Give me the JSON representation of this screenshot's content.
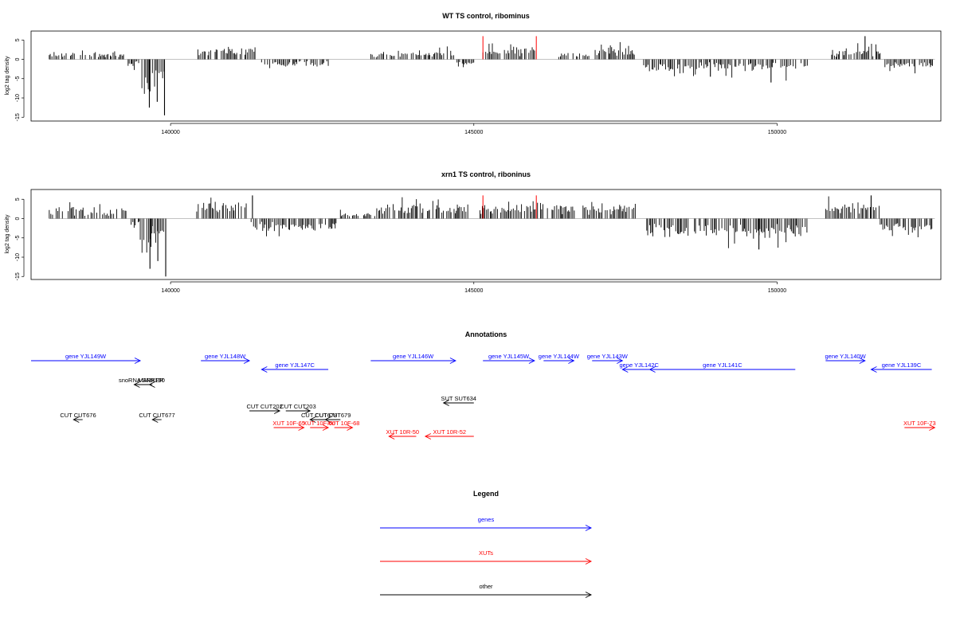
{
  "chart_data": [
    {
      "type": "bar",
      "title": "WT TS control, ribominus",
      "xlabel": "",
      "ylabel": "log2 tag density",
      "xlim": [
        137700,
        152700
      ],
      "ylim": [
        -16,
        7
      ],
      "x_ticks": [
        140000,
        145000,
        150000
      ],
      "y_ticks": [
        5,
        0,
        -5,
        -10,
        -15
      ],
      "grid": false,
      "bar_color": "#000000",
      "highlight_color": "#ff0000",
      "highlight_x": [
        145150,
        146030
      ],
      "highlight_height": 6,
      "segments": [
        {
          "x0": 138000,
          "x1": 138300,
          "sign": 1,
          "base": 1.2,
          "amp": 0.8,
          "seed": 1
        },
        {
          "x0": 138350,
          "x1": 139250,
          "sign": 1,
          "base": 1.0,
          "amp": 1.2,
          "seed": 2
        },
        {
          "x0": 139300,
          "x1": 139500,
          "sign": -1,
          "base": 1.0,
          "amp": 1.5,
          "seed": 3
        },
        {
          "x0": 139500,
          "x1": 139700,
          "sign": -1,
          "base": 7.0,
          "amp": 5.0,
          "seed": 4
        },
        {
          "x0": 139700,
          "x1": 139900,
          "sign": -1,
          "base": 3.0,
          "amp": 4.0,
          "seed": 5
        },
        {
          "x0": 140450,
          "x1": 141400,
          "sign": 1,
          "base": 2.0,
          "amp": 1.6,
          "seed": 6
        },
        {
          "x0": 141500,
          "x1": 142600,
          "sign": -1,
          "base": 1.0,
          "amp": 1.5,
          "seed": 7
        },
        {
          "x0": 143300,
          "x1": 143900,
          "sign": 1,
          "base": 1.0,
          "amp": 1.0,
          "seed": 8
        },
        {
          "x0": 143900,
          "x1": 144700,
          "sign": 1,
          "base": 1.2,
          "amp": 1.5,
          "seed": 9
        },
        {
          "x0": 144700,
          "x1": 145000,
          "sign": -1,
          "base": 0.8,
          "amp": 1.0,
          "seed": 10
        },
        {
          "x0": 145150,
          "x1": 146050,
          "sign": 1,
          "base": 2.0,
          "amp": 1.5,
          "seed": 11
        },
        {
          "x0": 146400,
          "x1": 146900,
          "sign": 1,
          "base": 1.2,
          "amp": 1.0,
          "seed": 12
        },
        {
          "x0": 147000,
          "x1": 147650,
          "sign": 1,
          "base": 2.0,
          "amp": 2.0,
          "seed": 13
        },
        {
          "x0": 147800,
          "x1": 150500,
          "sign": -1,
          "base": 1.5,
          "amp": 2.5,
          "seed": 14
        },
        {
          "x0": 150900,
          "x1": 151700,
          "sign": 1,
          "base": 1.5,
          "amp": 2.0,
          "seed": 15
        },
        {
          "x0": 151700,
          "x1": 152600,
          "sign": -1,
          "base": 1.5,
          "amp": 1.5,
          "seed": 16
        }
      ],
      "peaks": [
        {
          "x": 139900,
          "y": -14.5
        },
        {
          "x": 139650,
          "y": -12.5
        },
        {
          "x": 139780,
          "y": -11.0
        },
        {
          "x": 151450,
          "y": 6.0
        },
        {
          "x": 149900,
          "y": -6.0
        },
        {
          "x": 148900,
          "y": -4.5
        }
      ]
    },
    {
      "type": "bar",
      "title": "xrn1 TS control, riboninus",
      "xlabel": "",
      "ylabel": "log2 tag density",
      "xlim": [
        137700,
        152700
      ],
      "ylim": [
        -16,
        7
      ],
      "x_ticks": [
        140000,
        145000,
        150000
      ],
      "y_ticks": [
        5,
        0,
        -5,
        -10,
        -15
      ],
      "grid": false,
      "bar_color": "#000000",
      "highlight_color": "#ff0000",
      "highlight_x": [
        145150,
        146030
      ],
      "highlight_height": 6,
      "segments": [
        {
          "x0": 138000,
          "x1": 139300,
          "sign": 1,
          "base": 1.8,
          "amp": 1.8,
          "seed": 21
        },
        {
          "x0": 139350,
          "x1": 139500,
          "sign": -1,
          "base": 1.5,
          "amp": 2.0,
          "seed": 22
        },
        {
          "x0": 139500,
          "x1": 139700,
          "sign": -1,
          "base": 7.0,
          "amp": 5.0,
          "seed": 23
        },
        {
          "x0": 139700,
          "x1": 139900,
          "sign": -1,
          "base": 3.0,
          "amp": 5.0,
          "seed": 24
        },
        {
          "x0": 140400,
          "x1": 141300,
          "sign": 1,
          "base": 3.0,
          "amp": 2.0,
          "seed": 25
        },
        {
          "x0": 141300,
          "x1": 142800,
          "sign": -1,
          "base": 2.0,
          "amp": 2.0,
          "seed": 26
        },
        {
          "x0": 142800,
          "x1": 143400,
          "sign": 1,
          "base": 0.8,
          "amp": 1.0,
          "seed": 27
        },
        {
          "x0": 143400,
          "x1": 144900,
          "sign": 1,
          "base": 2.5,
          "amp": 2.0,
          "seed": 28
        },
        {
          "x0": 145100,
          "x1": 146050,
          "sign": 1,
          "base": 2.5,
          "amp": 2.0,
          "seed": 29
        },
        {
          "x0": 146050,
          "x1": 146700,
          "sign": 1,
          "base": 2.5,
          "amp": 2.5,
          "seed": 30
        },
        {
          "x0": 146800,
          "x1": 147700,
          "sign": 1,
          "base": 2.5,
          "amp": 2.0,
          "seed": 31
        },
        {
          "x0": 147800,
          "x1": 150500,
          "sign": -1,
          "base": 3.0,
          "amp": 3.0,
          "seed": 32
        },
        {
          "x0": 150800,
          "x1": 151700,
          "sign": 1,
          "base": 2.5,
          "amp": 2.5,
          "seed": 33
        },
        {
          "x0": 151700,
          "x1": 152600,
          "sign": -1,
          "base": 2.0,
          "amp": 2.0,
          "seed": 34
        }
      ],
      "peaks": [
        {
          "x": 139920,
          "y": -15.0
        },
        {
          "x": 139660,
          "y": -13.0
        },
        {
          "x": 139790,
          "y": -11.0
        },
        {
          "x": 141350,
          "y": 6.0
        },
        {
          "x": 149700,
          "y": -8.0
        },
        {
          "x": 151550,
          "y": 6.0
        }
      ]
    }
  ],
  "annotations": {
    "title": "Annotations",
    "xlim": [
      137700,
      152700
    ],
    "items": [
      {
        "label": "gene YJL149W",
        "x0": 137700,
        "x1": 139500,
        "row": 0,
        "strand": "+",
        "cls": "gene"
      },
      {
        "label": "gene YJL148W",
        "x0": 140500,
        "x1": 141300,
        "row": 0,
        "strand": "+",
        "cls": "gene"
      },
      {
        "label": "gene YJL147C",
        "x0": 141500,
        "x1": 142600,
        "row": 1,
        "strand": "-",
        "cls": "gene"
      },
      {
        "label": "gene YJL146W",
        "x0": 143300,
        "x1": 144700,
        "row": 0,
        "strand": "+",
        "cls": "gene"
      },
      {
        "label": "gene YJL145W",
        "x0": 145150,
        "x1": 146000,
        "row": 0,
        "strand": "+",
        "cls": "gene"
      },
      {
        "label": "gene YJL144W",
        "x0": 146150,
        "x1": 146650,
        "row": 0,
        "strand": "+",
        "cls": "gene"
      },
      {
        "label": "gene YJL143W",
        "x0": 146950,
        "x1": 147450,
        "row": 0,
        "strand": "+",
        "cls": "gene"
      },
      {
        "label": "gene YJL142C",
        "x0": 147450,
        "x1": 148000,
        "row": 1,
        "strand": "-",
        "cls": "gene"
      },
      {
        "label": "gene YJL141C",
        "x0": 147900,
        "x1": 150300,
        "row": 1,
        "strand": "-",
        "cls": "gene"
      },
      {
        "label": "gene YJL140W",
        "x0": 150800,
        "x1": 151450,
        "row": 0,
        "strand": "+",
        "cls": "gene"
      },
      {
        "label": "gene YJL139C",
        "x0": 151550,
        "x1": 152550,
        "row": 1,
        "strand": "-",
        "cls": "gene"
      },
      {
        "label": "snoRNA SNR190",
        "x0": 139400,
        "x1": 139650,
        "row": 2,
        "strand": "-",
        "cls": "other"
      },
      {
        "label": "MARKER",
        "x0": 139650,
        "x1": 139700,
        "row": 2,
        "strand": "-",
        "cls": "other"
      },
      {
        "label": "SUT SUT634",
        "x0": 144500,
        "x1": 145000,
        "row": 3,
        "strand": "-",
        "cls": "other"
      },
      {
        "label": "CUT CUT202",
        "x0": 141300,
        "x1": 141800,
        "row": 4,
        "strand": "+",
        "cls": "other"
      },
      {
        "label": "CUT CUT203",
        "x0": 141900,
        "x1": 142300,
        "row": 4,
        "strand": "+",
        "cls": "other"
      },
      {
        "label": "CUT CUT676",
        "x0": 138400,
        "x1": 138550,
        "row": 5,
        "strand": "-",
        "cls": "other"
      },
      {
        "label": "CUT CUT677",
        "x0": 139700,
        "x1": 139850,
        "row": 5,
        "strand": "-",
        "cls": "other"
      },
      {
        "label": "CUT CUT678",
        "x0": 142300,
        "x1": 142600,
        "row": 5,
        "strand": "-",
        "cls": "other"
      },
      {
        "label": "CUT CUT679",
        "x0": 142550,
        "x1": 142800,
        "row": 5,
        "strand": "-",
        "cls": "other"
      },
      {
        "label": "XUT 10F-65",
        "x0": 141700,
        "x1": 142200,
        "row": 6,
        "strand": "+",
        "cls": "xut"
      },
      {
        "label": "XUT 10F-66",
        "x0": 142300,
        "x1": 142600,
        "row": 6,
        "strand": "+",
        "cls": "xut"
      },
      {
        "label": "XUT 10F-68",
        "x0": 142700,
        "x1": 143000,
        "row": 6,
        "strand": "+",
        "cls": "xut"
      },
      {
        "label": "XUT 10R-50",
        "x0": 143600,
        "x1": 144050,
        "row": 7,
        "strand": "-",
        "cls": "xut"
      },
      {
        "label": "XUT 10R-52",
        "x0": 144200,
        "x1": 145000,
        "row": 7,
        "strand": "-",
        "cls": "xut"
      },
      {
        "label": "XUT 10F-73",
        "x0": 152100,
        "x1": 152600,
        "row": 6,
        "strand": "+",
        "cls": "xut"
      }
    ]
  },
  "legend": {
    "title": "Legend",
    "entries": [
      {
        "label": "genes",
        "color": "#0000ff"
      },
      {
        "label": "XUTs",
        "color": "#ff0000"
      },
      {
        "label": "other",
        "color": "#000000"
      }
    ]
  },
  "colors": {
    "gene": "#0000ff",
    "xut": "#ff0000",
    "other": "#000000",
    "axis": "#000000",
    "baseline": "#888888"
  }
}
